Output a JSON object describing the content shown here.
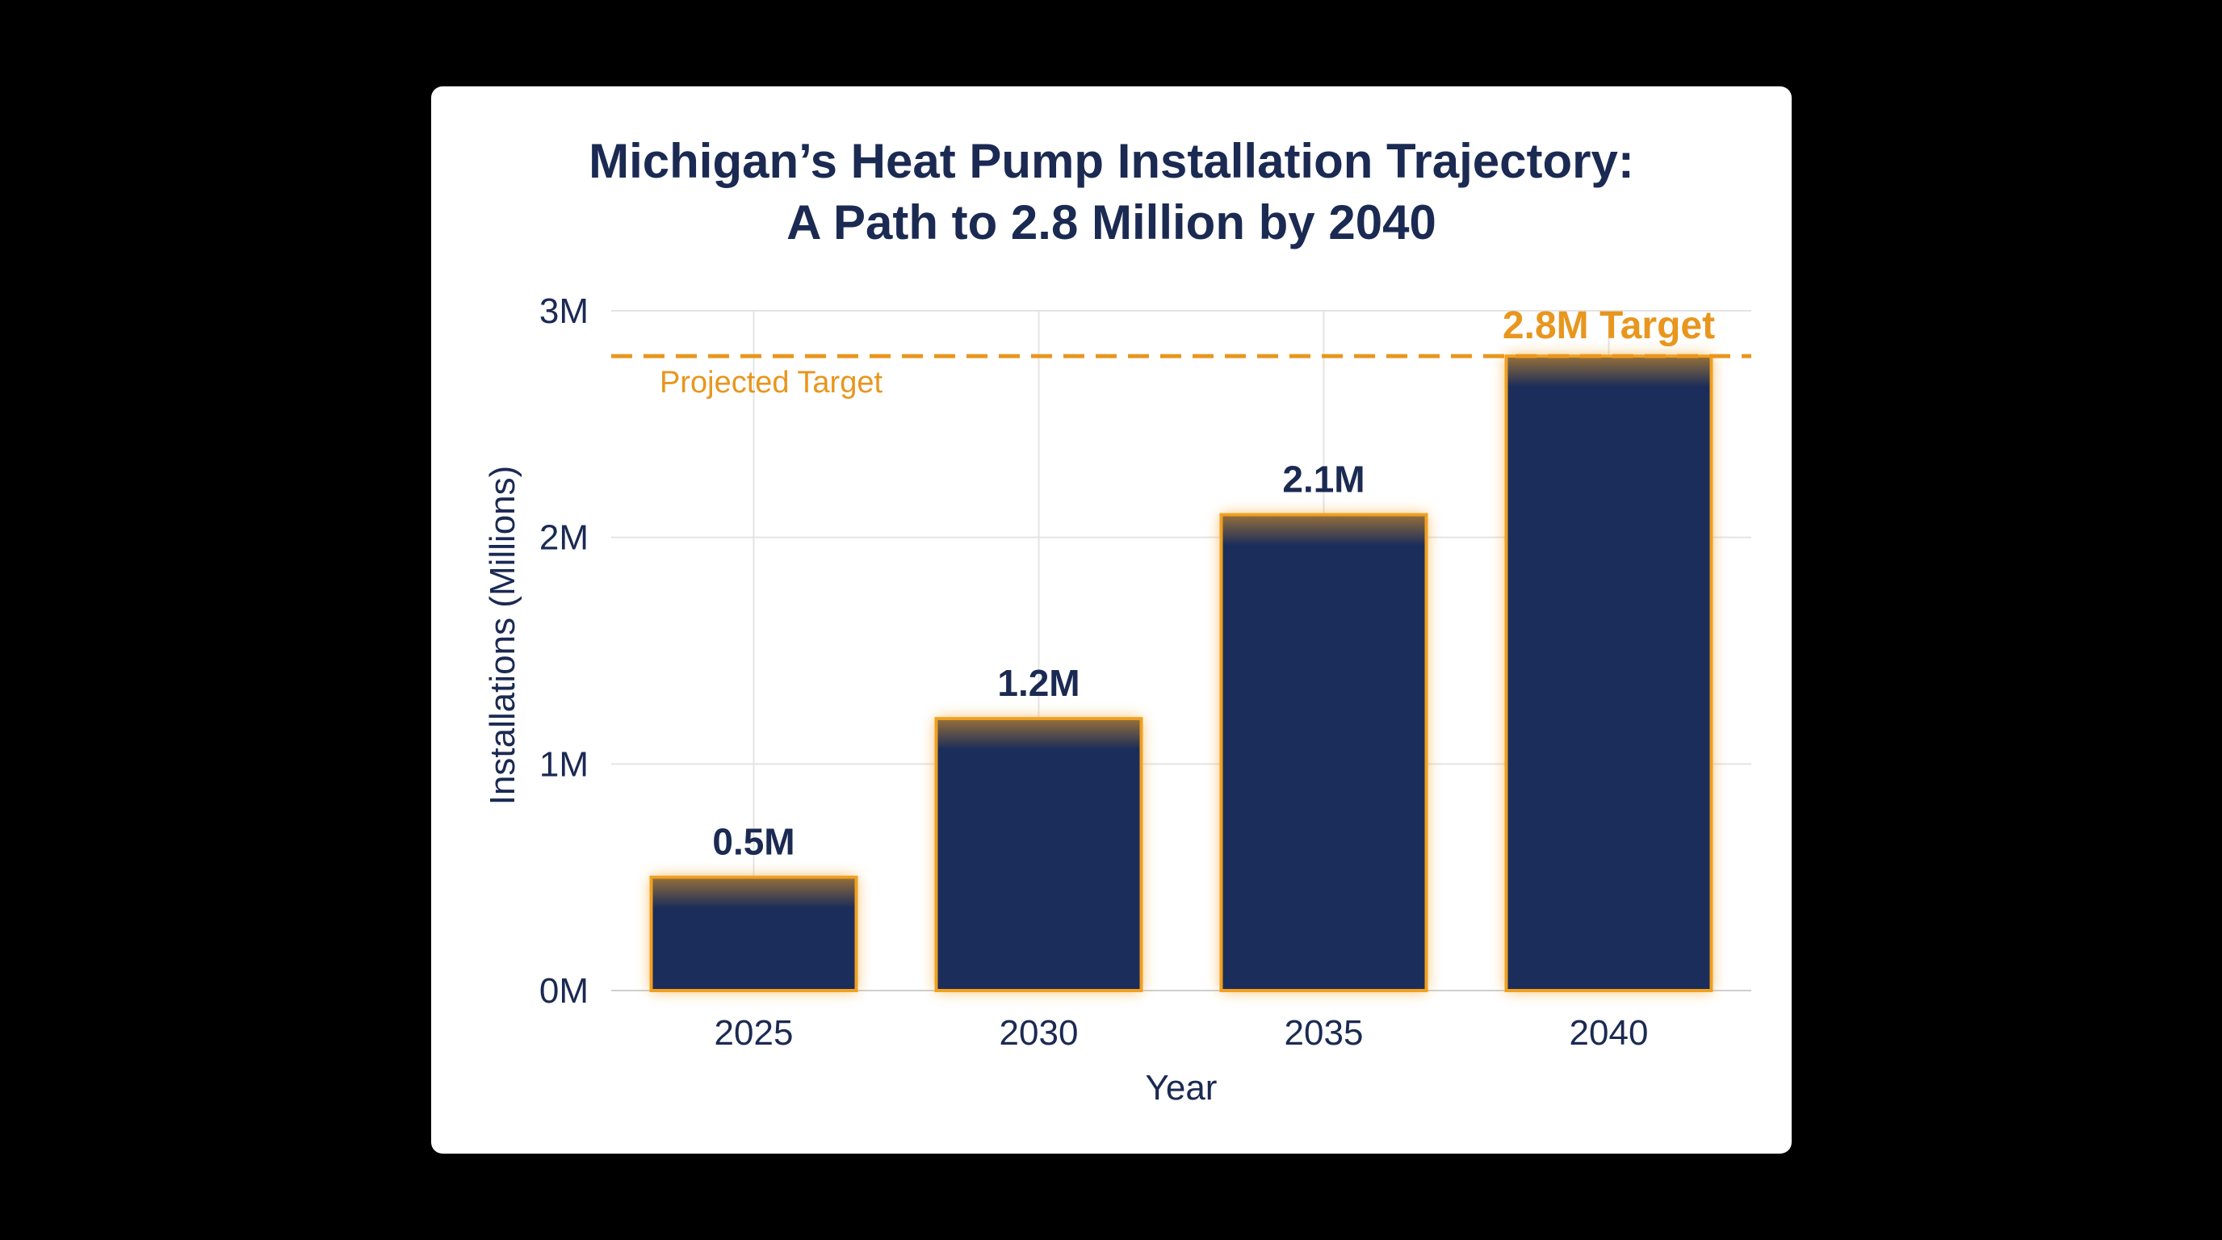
{
  "chart_data": {
    "type": "bar",
    "title_line1": "Michigan’s Heat Pump Installation Trajectory:",
    "title_line2": "A Path to 2.8 Million by 2040",
    "xlabel": "Year",
    "ylabel": "Installations (Millions)",
    "categories": [
      "2025",
      "2030",
      "2035",
      "2040"
    ],
    "values": [
      0.5,
      1.2,
      2.1,
      2.8
    ],
    "data_labels": [
      "0.5M",
      "1.2M",
      "2.1M",
      "2.8M Target"
    ],
    "ylim": [
      0,
      3
    ],
    "y_ticks": [
      {
        "value": 0,
        "label": "0M"
      },
      {
        "value": 1,
        "label": "1M"
      },
      {
        "value": 2,
        "label": "2M"
      },
      {
        "value": 3,
        "label": "3M"
      }
    ],
    "reference_line": {
      "value": 2.8,
      "label": "Projected Target",
      "style": "dashed"
    },
    "grid": true,
    "colors": {
      "bar_fill": "#1b2d5a",
      "bar_outline": "#f0a020",
      "accent": "#e8961e",
      "text": "#1b2a52",
      "grid": "#e4e4e4"
    }
  }
}
